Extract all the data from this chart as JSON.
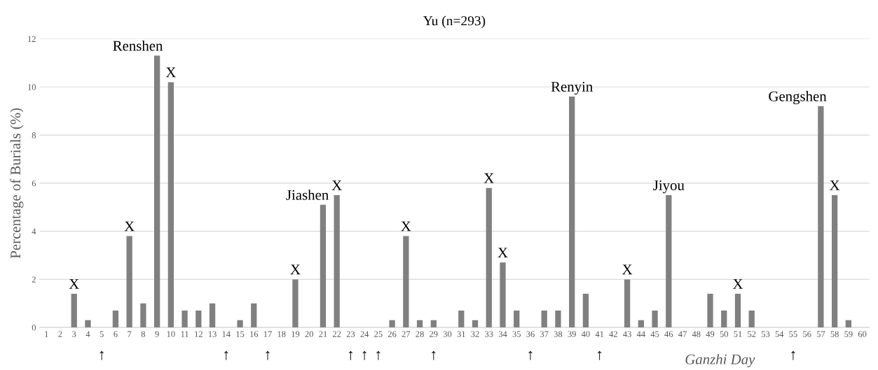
{
  "chart_data": {
    "type": "bar",
    "title": "Yu (n=293)",
    "xlabel": "Ganzhi Day",
    "ylabel": "Percentage of Burials (%)",
    "categories": [
      "1",
      "2",
      "3",
      "4",
      "5",
      "6",
      "7",
      "8",
      "9",
      "10",
      "11",
      "12",
      "13",
      "14",
      "15",
      "16",
      "17",
      "18",
      "19",
      "20",
      "21",
      "22",
      "23",
      "24",
      "25",
      "26",
      "27",
      "28",
      "29",
      "30",
      "31",
      "32",
      "33",
      "34",
      "35",
      "36",
      "37",
      "38",
      "39",
      "40",
      "41",
      "42",
      "43",
      "44",
      "45",
      "46",
      "47",
      "48",
      "49",
      "50",
      "51",
      "52",
      "53",
      "54",
      "55",
      "56",
      "57",
      "58",
      "59",
      "60"
    ],
    "values": [
      0,
      0,
      1.4,
      0.3,
      0,
      0.7,
      3.8,
      1.0,
      11.3,
      10.2,
      0.7,
      0.7,
      1.0,
      0,
      0.3,
      1.0,
      0,
      0,
      2.0,
      0,
      5.1,
      5.5,
      0,
      0,
      0,
      0.3,
      3.8,
      0.3,
      0.3,
      0,
      0.7,
      0.3,
      5.8,
      2.7,
      0.7,
      0,
      0.7,
      0.7,
      9.6,
      1.4,
      0,
      0,
      2.0,
      0.3,
      0.7,
      5.5,
      0,
      0,
      1.4,
      0.7,
      1.4,
      0.7,
      0,
      0,
      0,
      0,
      9.2,
      5.5,
      0.3,
      0
    ],
    "color": "#808080",
    "ylim": [
      0,
      12
    ],
    "yticks": [
      0,
      2,
      4,
      6,
      8,
      10,
      12
    ],
    "grid": "y",
    "annotations": [
      {
        "text": "X",
        "x": "3",
        "y": 1.4
      },
      {
        "text": "X",
        "x": "7",
        "y": 3.8
      },
      {
        "text": "Renshen",
        "x": "9",
        "y": 11.3
      },
      {
        "text": "X",
        "x": "10",
        "y": 10.2
      },
      {
        "text": "X",
        "x": "19",
        "y": 2.0
      },
      {
        "text": "Jiashen",
        "x": "21",
        "y": 5.1
      },
      {
        "text": "X",
        "x": "22",
        "y": 5.5
      },
      {
        "text": "X",
        "x": "27",
        "y": 3.8
      },
      {
        "text": "X",
        "x": "33",
        "y": 5.8
      },
      {
        "text": "X",
        "x": "34",
        "y": 2.7
      },
      {
        "text": "Renyin",
        "x": "39",
        "y": 9.6
      },
      {
        "text": "X",
        "x": "43",
        "y": 2.0
      },
      {
        "text": "Jiyou",
        "x": "46",
        "y": 5.5
      },
      {
        "text": "X",
        "x": "51",
        "y": 1.4
      },
      {
        "text": "Gengshen",
        "x": "57",
        "y": 9.2
      },
      {
        "text": "X",
        "x": "58",
        "y": 5.5
      },
      {
        "text": "↑",
        "x": "5",
        "y": 0
      },
      {
        "text": "↑",
        "x": "14",
        "y": 0
      },
      {
        "text": "↑",
        "x": "17",
        "y": 0
      },
      {
        "text": "↑",
        "x": "23",
        "y": 0
      },
      {
        "text": "↑",
        "x": "24",
        "y": 0
      },
      {
        "text": "↑",
        "x": "25",
        "y": 0
      },
      {
        "text": "↑",
        "x": "29",
        "y": 0
      },
      {
        "text": "↑",
        "x": "36",
        "y": 0
      },
      {
        "text": "↑",
        "x": "41",
        "y": 0
      },
      {
        "text": "↑",
        "x": "55",
        "y": 0
      }
    ]
  }
}
